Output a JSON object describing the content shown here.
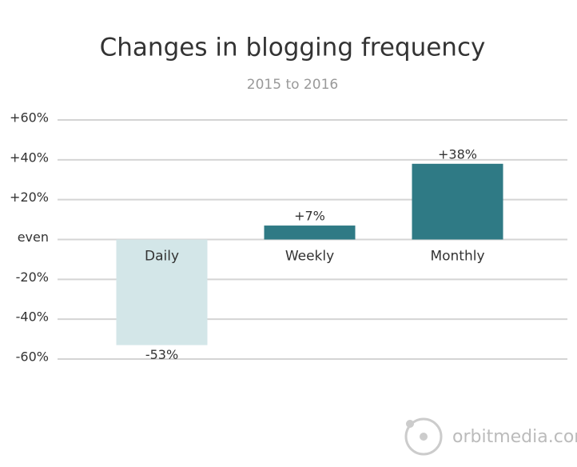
{
  "chart_data": {
    "type": "bar",
    "title": "Changes in blogging frequency",
    "subtitle": "2015 to 2016",
    "categories": [
      "Daily",
      "Weekly",
      "Monthly"
    ],
    "values": [
      -53,
      7,
      38
    ],
    "value_labels": [
      "-53%",
      "+7%",
      "+38%"
    ],
    "colors": [
      "#d3e6e8",
      "#2f7a85",
      "#2f7a85"
    ],
    "ylim": [
      -60,
      60
    ],
    "yticks": [
      {
        "value": 60,
        "label": "+60%"
      },
      {
        "value": 40,
        "label": "+40%"
      },
      {
        "value": 20,
        "label": "+20%"
      },
      {
        "value": 0,
        "label": "even"
      },
      {
        "value": -20,
        "label": "-20%"
      },
      {
        "value": -40,
        "label": "-40%"
      },
      {
        "value": -60,
        "label": "-60%"
      }
    ],
    "grid": true
  },
  "watermark": "orbitmedia.com"
}
